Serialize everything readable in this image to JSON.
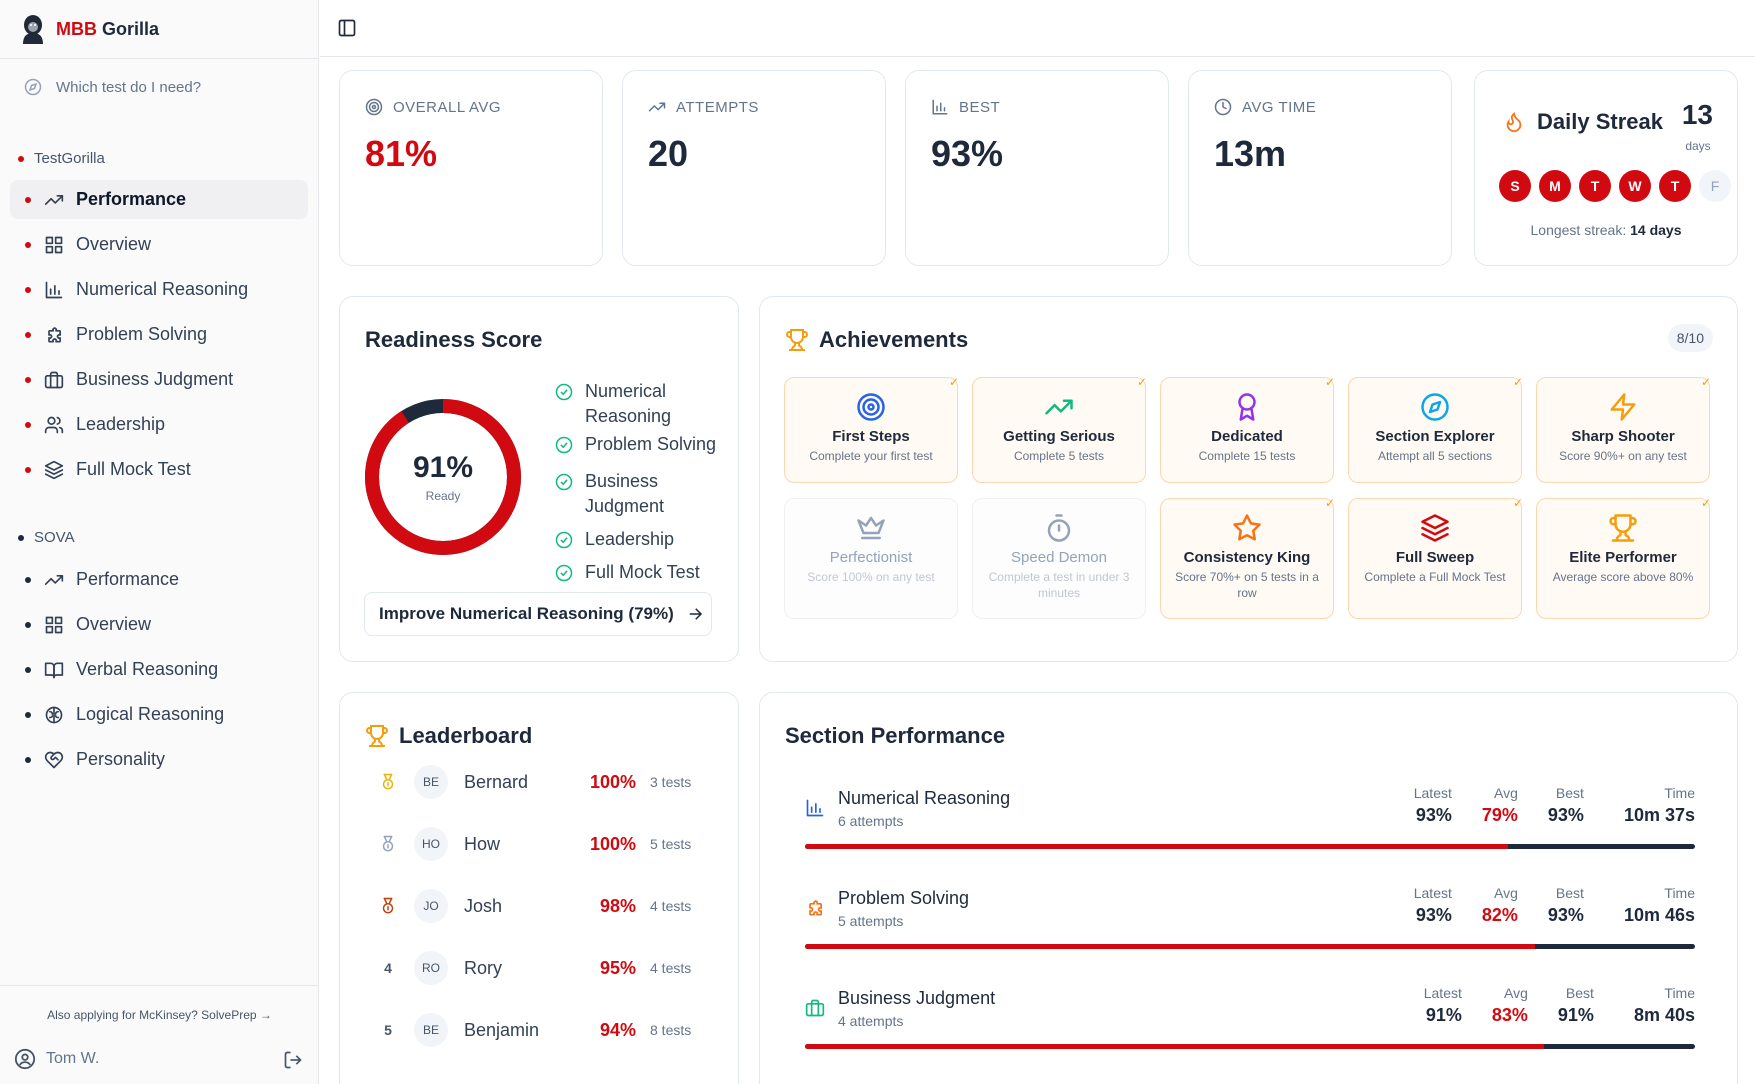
{
  "app": {
    "brand_red": "MBB",
    "brand_dark": "Gorilla"
  },
  "sidebar": {
    "help_link": "Which test do I need?",
    "groups": [
      {
        "label": "TestGorilla",
        "items": [
          {
            "label": "Performance",
            "icon": "trending-up-icon",
            "active": true
          },
          {
            "label": "Overview",
            "icon": "grid-icon"
          },
          {
            "label": "Numerical Reasoning",
            "icon": "bar-chart-icon"
          },
          {
            "label": "Problem Solving",
            "icon": "puzzle-icon"
          },
          {
            "label": "Business Judgment",
            "icon": "briefcase-icon"
          },
          {
            "label": "Leadership",
            "icon": "users-icon"
          },
          {
            "label": "Full Mock Test",
            "icon": "layers-icon"
          }
        ]
      },
      {
        "label": "SOVA",
        "items": [
          {
            "label": "Performance",
            "icon": "trending-up-icon"
          },
          {
            "label": "Overview",
            "icon": "grid-icon"
          },
          {
            "label": "Verbal Reasoning",
            "icon": "book-icon"
          },
          {
            "label": "Logical Reasoning",
            "icon": "brain-icon"
          },
          {
            "label": "Personality",
            "icon": "heart-handshake-icon"
          }
        ]
      }
    ],
    "footer": "Also applying for McKinsey? SolvePrep →",
    "user": "Tom W."
  },
  "stats": [
    {
      "label": "OVERALL AVG",
      "value": "81%",
      "icon": "target-icon"
    },
    {
      "label": "ATTEMPTS",
      "value": "20",
      "icon": "trending-up-icon"
    },
    {
      "label": "BEST",
      "value": "93%",
      "icon": "bar-chart-icon"
    },
    {
      "label": "AVG TIME",
      "value": "13m",
      "icon": "clock-icon"
    }
  ],
  "streak": {
    "title": "Daily Streak",
    "count": "13",
    "unit": "days",
    "days": [
      {
        "l": "S",
        "on": true
      },
      {
        "l": "M",
        "on": true
      },
      {
        "l": "T",
        "on": true
      },
      {
        "l": "W",
        "on": true
      },
      {
        "l": "T",
        "on": true
      },
      {
        "l": "F",
        "on": false
      }
    ],
    "longest_label": "Longest streak:",
    "longest_value": "14 days"
  },
  "readiness": {
    "title": "Readiness Score",
    "percent": "91%",
    "percent_value": 91,
    "sub": "Ready",
    "items": [
      "Numerical Reasoning",
      "Problem Solving",
      "Business Judgment",
      "Leadership",
      "Full Mock Test"
    ],
    "cta": "Improve Numerical Reasoning (79%)"
  },
  "achievements": {
    "title": "Achievements",
    "count": "8/10",
    "items": [
      {
        "name": "First Steps",
        "desc": "Complete your first test",
        "icon": "target-icon",
        "color": "#2563eb",
        "unlocked": true
      },
      {
        "name": "Getting Serious",
        "desc": "Complete 5 tests",
        "icon": "trending-up-icon",
        "color": "#10b981",
        "unlocked": true
      },
      {
        "name": "Dedicated",
        "desc": "Complete 15 tests",
        "icon": "award-icon",
        "color": "#9333ea",
        "unlocked": true
      },
      {
        "name": "Section Explorer",
        "desc": "Attempt all 5 sections",
        "icon": "compass-icon",
        "color": "#0ea5e9",
        "unlocked": true
      },
      {
        "name": "Sharp Shooter",
        "desc": "Score 90%+ on any test",
        "icon": "zap-icon",
        "color": "#f59e0b",
        "unlocked": true
      },
      {
        "name": "Perfectionist",
        "desc": "Score 100% on any test",
        "icon": "crown-icon",
        "color": "#94a3b8",
        "unlocked": false
      },
      {
        "name": "Speed Demon",
        "desc": "Complete a test in under 3 minutes",
        "icon": "stopwatch-icon",
        "color": "#94a3b8",
        "unlocked": false
      },
      {
        "name": "Consistency King",
        "desc": "Score 70%+ on 5 tests in a row",
        "icon": "star-icon",
        "color": "#f97316",
        "unlocked": true
      },
      {
        "name": "Full Sweep",
        "desc": "Complete a Full Mock Test",
        "icon": "layers-icon",
        "color": "#d10a11",
        "unlocked": true
      },
      {
        "name": "Elite Performer",
        "desc": "Average score above 80%",
        "icon": "trophy-icon",
        "color": "#f59e0b",
        "unlocked": true
      }
    ]
  },
  "leaderboard": {
    "title": "Leaderboard",
    "rows": [
      {
        "rank": "",
        "medal": "#eab308",
        "initials": "BE",
        "name": "Bernard",
        "score": "100%",
        "tests": "3 tests"
      },
      {
        "rank": "",
        "medal": "#94a3b8",
        "initials": "HO",
        "name": "How",
        "score": "100%",
        "tests": "5 tests"
      },
      {
        "rank": "",
        "medal": "#c2410c",
        "initials": "JO",
        "name": "Josh",
        "score": "98%",
        "tests": "4 tests"
      },
      {
        "rank": "4",
        "medal": "",
        "initials": "RO",
        "name": "Rory",
        "score": "95%",
        "tests": "4 tests"
      },
      {
        "rank": "5",
        "medal": "",
        "initials": "BE",
        "name": "Benjamin",
        "score": "94%",
        "tests": "8 tests"
      }
    ]
  },
  "section_performance": {
    "title": "Section Performance",
    "headers": [
      "Latest",
      "Avg",
      "Best",
      "Time"
    ],
    "rows": [
      {
        "name": "Numerical Reasoning",
        "attempts": "6 attempts",
        "icon": "bar-chart-icon",
        "color": "#2563eb",
        "latest": "93%",
        "avg": "79%",
        "best": "93%",
        "time": "10m 37s",
        "avg_value": 79
      },
      {
        "name": "Problem Solving",
        "attempts": "5 attempts",
        "icon": "puzzle-icon",
        "color": "#f97316",
        "latest": "93%",
        "avg": "82%",
        "best": "93%",
        "time": "10m 46s",
        "avg_value": 82
      },
      {
        "name": "Business Judgment",
        "attempts": "4 attempts",
        "icon": "briefcase-icon",
        "color": "#10b981",
        "latest": "91%",
        "avg": "83%",
        "best": "91%",
        "time": "8m 40s",
        "avg_value": 83
      }
    ]
  }
}
